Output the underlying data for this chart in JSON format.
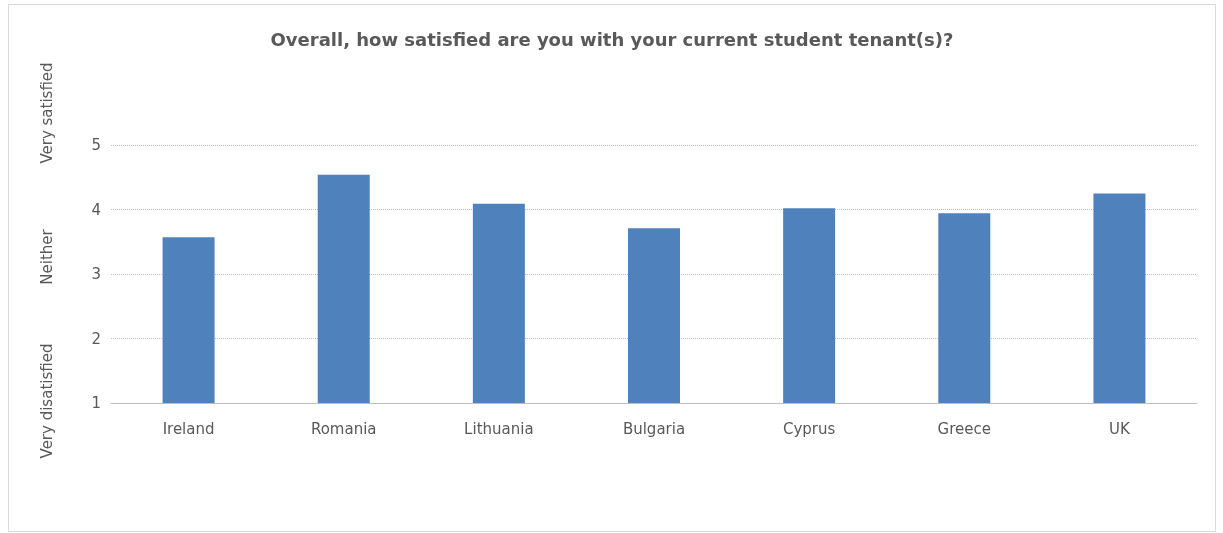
{
  "chart_data": {
    "type": "bar",
    "title": "Overall, how satisfied are you with your current student tenant(s)?",
    "categories": [
      "Ireland",
      "Romania",
      "Lithuania",
      "Bulgaria",
      "Cyprus",
      "Greece",
      "UK"
    ],
    "values": [
      3.57,
      4.54,
      4.09,
      3.71,
      4.02,
      3.94,
      4.25
    ],
    "color": "#4f81bd",
    "ylim": [
      1,
      5
    ],
    "yticks": [
      1,
      2,
      3,
      4,
      5
    ],
    "grid": "y",
    "annotations": [
      "Very disatisfied",
      "Neither",
      "Very satisfied"
    ]
  }
}
